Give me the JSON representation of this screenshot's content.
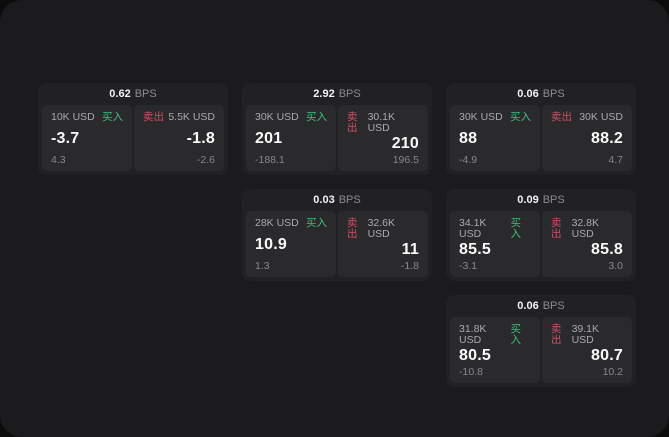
{
  "labels": {
    "buy": "买入",
    "sell": "卖出",
    "bps_suffix": "BPS"
  },
  "colors": {
    "buy-green": "#41bd7f",
    "sell-red": "#cf4e66",
    "panel-bg": "#1b1b1d",
    "card-bg": "#212123",
    "tile-bg": "#2a2a2c"
  },
  "cards": [
    {
      "bps": "0.62",
      "buy": {
        "amount": "10K USD",
        "value": "-3.7",
        "change": "4.3"
      },
      "sell": {
        "amount": "5.5K USD",
        "value": "-1.8",
        "change": "-2.6"
      }
    },
    {
      "bps": "2.92",
      "buy": {
        "amount": "30K USD",
        "value": "201",
        "change": "-188.1"
      },
      "sell": {
        "amount": "30.1K USD",
        "value": "210",
        "change": "196.5"
      }
    },
    {
      "bps": "0.06",
      "buy": {
        "amount": "30K USD",
        "value": "88",
        "change": "-4.9"
      },
      "sell": {
        "amount": "30K USD",
        "value": "88.2",
        "change": "4.7"
      }
    },
    {
      "bps": "0.03",
      "buy": {
        "amount": "28K USD",
        "value": "10.9",
        "change": "1.3"
      },
      "sell": {
        "amount": "32.6K USD",
        "value": "11",
        "change": "-1.8"
      }
    },
    {
      "bps": "0.09",
      "buy": {
        "amount": "34.1K USD",
        "value": "85.5",
        "change": "-3.1"
      },
      "sell": {
        "amount": "32.8K USD",
        "value": "85.8",
        "change": "3.0"
      }
    },
    {
      "bps": "0.06",
      "buy": {
        "amount": "31.8K USD",
        "value": "80.5",
        "change": "-10.8"
      },
      "sell": {
        "amount": "39.1K USD",
        "value": "80.7",
        "change": "10.2"
      }
    }
  ]
}
